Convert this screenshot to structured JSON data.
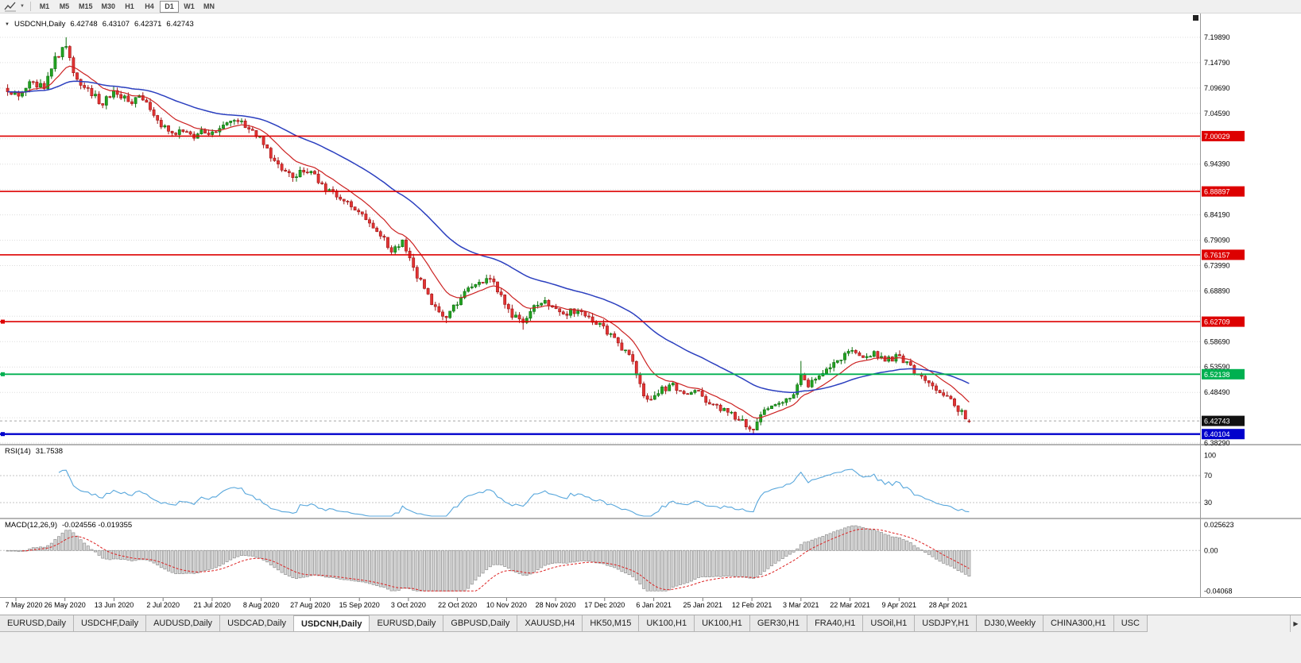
{
  "toolbar": {
    "line_studies_icon": "chart-line-icon",
    "dropdown_caret_icon": "chevron-down-icon",
    "timeframes": [
      {
        "label": "M1"
      },
      {
        "label": "M5"
      },
      {
        "label": "M15"
      },
      {
        "label": "M30"
      },
      {
        "label": "H1"
      },
      {
        "label": "H4"
      },
      {
        "label": "D1",
        "active": true
      },
      {
        "label": "W1"
      },
      {
        "label": "MN"
      }
    ]
  },
  "chart": {
    "title": {
      "symbol_period": "USDCNH,Daily",
      "open": "6.42748",
      "high": "6.43107",
      "low": "6.42371",
      "close": "6.42743"
    },
    "price_axis": {
      "labels": [
        "7.19890",
        "7.14790",
        "7.09690",
        "7.04590",
        "6.99490",
        "6.94390",
        "6.89290",
        "6.84190",
        "6.79090",
        "6.73990",
        "6.68890",
        "6.63790",
        "6.58690",
        "6.53590",
        "6.48490",
        "6.43390",
        "6.38290"
      ]
    },
    "level_lines": [
      {
        "label": "7.00029",
        "price": 7.00029,
        "color": "#dd0000",
        "width": 1.6,
        "handle": false
      },
      {
        "label": "6.88897",
        "price": 6.88897,
        "color": "#dd0000",
        "width": 1.6,
        "handle": false
      },
      {
        "label": "6.76157",
        "price": 6.76157,
        "color": "#dd0000",
        "width": 1.6,
        "handle": false
      },
      {
        "label": "6.62709",
        "price": 6.62709,
        "color": "#dd0000",
        "width": 1.6,
        "handle": true
      },
      {
        "label": "6.52138",
        "price": 6.52138,
        "color": "#00b050",
        "width": 1.8,
        "handle": true
      },
      {
        "label": "6.40104",
        "price": 6.40104,
        "color": "#0000cc",
        "width": 2.4,
        "handle": true
      }
    ],
    "current_price": {
      "value": 6.42743,
      "label": "6.42743",
      "badge_color": "#111111"
    },
    "date_axis": [
      "7 May 2020",
      "26 May 2020",
      "13 Jun 2020",
      "2 Jul 2020",
      "21 Jul 2020",
      "8 Aug 2020",
      "27 Aug 2020",
      "15 Sep 2020",
      "3 Oct 2020",
      "22 Oct 2020",
      "10 Nov 2020",
      "28 Nov 2020",
      "17 Dec 2020",
      "6 Jan 2021",
      "25 Jan 2021",
      "12 Feb 2021",
      "3 Mar 2021",
      "22 Mar 2021",
      "9 Apr 2021",
      "28 Apr 2021"
    ],
    "chart_data": {
      "type": "candlestick",
      "symbol": "USDCNH",
      "timeframe": "Daily",
      "bars_count": 264,
      "last_ohlc": {
        "open": 6.42748,
        "high": 6.43107,
        "low": 6.42371,
        "close": 6.42743
      },
      "colors": {
        "up": "#22a322",
        "up_border": "#0d6e0d",
        "down": "#e23434",
        "down_border": "#9f1414"
      },
      "moving_averages": [
        {
          "name": "fast-ma",
          "period": 12,
          "color": "#cc2222"
        },
        {
          "name": "slow-ma",
          "period": 45,
          "color": "#2b3fbf"
        }
      ],
      "price_path_waypoints": [
        [
          0,
          7.095
        ],
        [
          3,
          7.08
        ],
        [
          6,
          7.105
        ],
        [
          10,
          7.1
        ],
        [
          13,
          7.155
        ],
        [
          16,
          7.185
        ],
        [
          18,
          7.13
        ],
        [
          20,
          7.1
        ],
        [
          23,
          7.085
        ],
        [
          26,
          7.065
        ],
        [
          29,
          7.09
        ],
        [
          32,
          7.075
        ],
        [
          34,
          7.06
        ],
        [
          36,
          7.085
        ],
        [
          39,
          7.055
        ],
        [
          42,
          7.02
        ],
        [
          45,
          7.005
        ],
        [
          48,
          7.012
        ],
        [
          51,
          6.996
        ],
        [
          54,
          7.012
        ],
        [
          57,
          7.005
        ],
        [
          60,
          7.03
        ],
        [
          63,
          7.035
        ],
        [
          66,
          7.012
        ],
        [
          69,
          6.995
        ],
        [
          72,
          6.958
        ],
        [
          75,
          6.935
        ],
        [
          78,
          6.916
        ],
        [
          81,
          6.93
        ],
        [
          84,
          6.92
        ],
        [
          87,
          6.892
        ],
        [
          90,
          6.88
        ],
        [
          93,
          6.864
        ],
        [
          96,
          6.845
        ],
        [
          99,
          6.824
        ],
        [
          102,
          6.8
        ],
        [
          105,
          6.772
        ],
        [
          108,
          6.786
        ],
        [
          110,
          6.755
        ],
        [
          112,
          6.72
        ],
        [
          114,
          6.695
        ],
        [
          117,
          6.652
        ],
        [
          120,
          6.64
        ],
        [
          123,
          6.666
        ],
        [
          126,
          6.69
        ],
        [
          129,
          6.705
        ],
        [
          132,
          6.714
        ],
        [
          135,
          6.678
        ],
        [
          138,
          6.642
        ],
        [
          141,
          6.625
        ],
        [
          144,
          6.656
        ],
        [
          147,
          6.67
        ],
        [
          150,
          6.656
        ],
        [
          153,
          6.645
        ],
        [
          156,
          6.65
        ],
        [
          159,
          6.635
        ],
        [
          162,
          6.624
        ],
        [
          165,
          6.6
        ],
        [
          168,
          6.576
        ],
        [
          171,
          6.545
        ],
        [
          173,
          6.5
        ],
        [
          175,
          6.466
        ],
        [
          177,
          6.476
        ],
        [
          179,
          6.49
        ],
        [
          182,
          6.5
        ],
        [
          185,
          6.48
        ],
        [
          188,
          6.492
        ],
        [
          190,
          6.476
        ],
        [
          193,
          6.46
        ],
        [
          196,
          6.45
        ],
        [
          199,
          6.434
        ],
        [
          202,
          6.42
        ],
        [
          204,
          6.414
        ],
        [
          206,
          6.44
        ],
        [
          209,
          6.456
        ],
        [
          212,
          6.47
        ],
        [
          215,
          6.482
        ],
        [
          217,
          6.525
        ],
        [
          219,
          6.5
        ],
        [
          221,
          6.506
        ],
        [
          223,
          6.52
        ],
        [
          226,
          6.545
        ],
        [
          229,
          6.56
        ],
        [
          231,
          6.572
        ],
        [
          234,
          6.558
        ],
        [
          237,
          6.566
        ],
        [
          240,
          6.55
        ],
        [
          243,
          6.556
        ],
        [
          246,
          6.544
        ],
        [
          249,
          6.52
        ],
        [
          252,
          6.5
        ],
        [
          255,
          6.49
        ],
        [
          257,
          6.475
        ],
        [
          259,
          6.458
        ],
        [
          261,
          6.443
        ],
        [
          263,
          6.4274
        ]
      ]
    }
  },
  "rsi": {
    "name": "RSI(14)",
    "value": "31.7538",
    "levels": [
      70,
      30
    ],
    "axis_labels": [
      "100",
      "70",
      "30"
    ],
    "color": "#58a7dc"
  },
  "macd": {
    "name": "MACD(12,26,9)",
    "values": "-0.024556 -0.019355",
    "axis_labels": [
      "0.025623",
      "0.00",
      "-0.04068"
    ],
    "scale_max": 0.025623,
    "scale_min": -0.04068,
    "signal_color": "#dd2222",
    "histogram_fill": "#d8d8d8",
    "histogram_border": "#909090"
  },
  "tabbar": {
    "scroll_right_icon": "▶",
    "tabs": [
      {
        "label": "EURUSD,Daily"
      },
      {
        "label": "USDCHF,Daily"
      },
      {
        "label": "AUDUSD,Daily"
      },
      {
        "label": "USDCAD,Daily"
      },
      {
        "label": "USDCNH,Daily",
        "active": true
      },
      {
        "label": "EURUSD,Daily"
      },
      {
        "label": "GBPUSD,Daily"
      },
      {
        "label": "XAUUSD,H4"
      },
      {
        "label": "HK50,M15"
      },
      {
        "label": "UK100,H1"
      },
      {
        "label": "UK100,H1"
      },
      {
        "label": "GER30,H1"
      },
      {
        "label": "FRA40,H1"
      },
      {
        "label": "USOil,H1"
      },
      {
        "label": "USDJPY,H1"
      },
      {
        "label": "DJ30,Weekly"
      },
      {
        "label": "CHINA300,H1"
      },
      {
        "label": "USC"
      }
    ]
  }
}
